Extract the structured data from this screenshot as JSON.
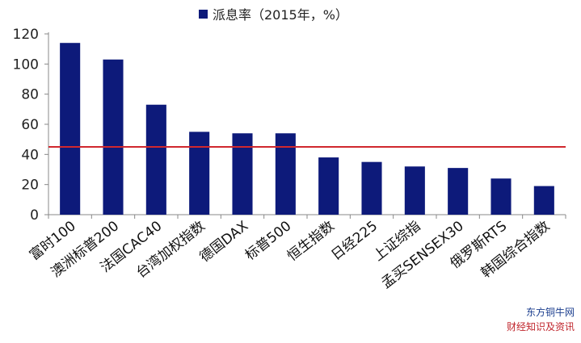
{
  "chart_data": {
    "type": "bar",
    "categories": [
      "富时100",
      "澳洲标普200",
      "法国CAC40",
      "台湾加权指数",
      "德国DAX",
      "标普500",
      "恒生指数",
      "日经225",
      "上证综指",
      "孟买SENSEX30",
      "俄罗斯RTS",
      "韩国综合指数"
    ],
    "series": [
      {
        "name": "派息率（2015年，%）",
        "values": [
          114,
          103,
          73,
          55,
          54,
          54,
          38,
          35,
          32,
          31,
          24,
          19
        ],
        "color": "#0d1a7a"
      }
    ],
    "reference_line": {
      "value": 45,
      "color": "#d0282e"
    },
    "ylim": [
      0,
      120
    ],
    "yticks": [
      0,
      20,
      40,
      60,
      80,
      100,
      120
    ],
    "grid": false,
    "legend": "top-center"
  },
  "watermark": {
    "line1": "东方铜牛网",
    "line2": "财经知识及资讯"
  }
}
